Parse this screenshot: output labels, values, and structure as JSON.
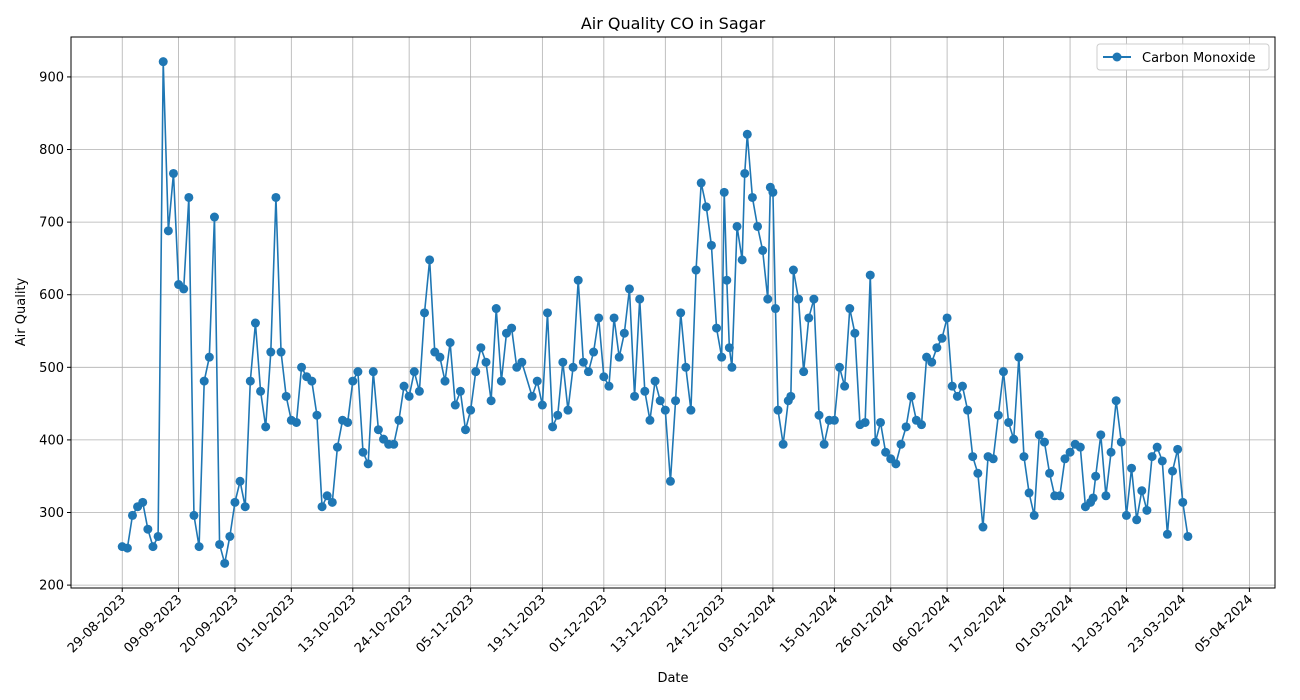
{
  "chart_data": {
    "type": "line",
    "title": "Air Quality CO in Sagar",
    "xlabel": "Date",
    "ylabel": "Air Quality",
    "ylim": [
      196,
      955
    ],
    "xlim": [
      "2023-08-19",
      "2024-04-10"
    ],
    "grid": true,
    "legend_position": "top-right",
    "colors": {
      "series": "#1f77b4",
      "grid": "#b0b0b0",
      "axis": "#000000"
    },
    "y_ticks": [
      200,
      300,
      400,
      500,
      600,
      700,
      800,
      900
    ],
    "x_ticks": [
      {
        "date": "2023-08-29",
        "label": "29-08-2023"
      },
      {
        "date": "2023-09-09",
        "label": "09-09-2023"
      },
      {
        "date": "2023-09-20",
        "label": "20-09-2023"
      },
      {
        "date": "2023-10-01",
        "label": "01-10-2023"
      },
      {
        "date": "2023-10-13",
        "label": "13-10-2023"
      },
      {
        "date": "2023-10-24",
        "label": "24-10-2023"
      },
      {
        "date": "2023-11-05",
        "label": "05-11-2023"
      },
      {
        "date": "2023-11-19",
        "label": "19-11-2023"
      },
      {
        "date": "2023-12-01",
        "label": "01-12-2023"
      },
      {
        "date": "2023-12-13",
        "label": "13-12-2023"
      },
      {
        "date": "2023-12-24",
        "label": "24-12-2023"
      },
      {
        "date": "2024-01-03",
        "label": "03-01-2024"
      },
      {
        "date": "2024-01-15",
        "label": "15-01-2024"
      },
      {
        "date": "2024-01-26",
        "label": "26-01-2024"
      },
      {
        "date": "2024-02-06",
        "label": "06-02-2024"
      },
      {
        "date": "2024-02-17",
        "label": "17-02-2024"
      },
      {
        "date": "2024-03-01",
        "label": "01-03-2024"
      },
      {
        "date": "2024-03-12",
        "label": "12-03-2024"
      },
      {
        "date": "2024-03-23",
        "label": "23-03-2024"
      },
      {
        "date": "2024-04-05",
        "label": "05-04-2024"
      }
    ],
    "series": [
      {
        "name": "Carbon Monoxide",
        "marker": "circle",
        "points": [
          {
            "x": "2023-08-29",
            "y": 253
          },
          {
            "x": "2023-08-30",
            "y": 251
          },
          {
            "x": "2023-08-31",
            "y": 296
          },
          {
            "x": "2023-09-01",
            "y": 308
          },
          {
            "x": "2023-09-02",
            "y": 314
          },
          {
            "x": "2023-09-03",
            "y": 277
          },
          {
            "x": "2023-09-04",
            "y": 253
          },
          {
            "x": "2023-09-05",
            "y": 267
          },
          {
            "x": "2023-09-06",
            "y": 921
          },
          {
            "x": "2023-09-07",
            "y": 688
          },
          {
            "x": "2023-09-08",
            "y": 767
          },
          {
            "x": "2023-09-09",
            "y": 614
          },
          {
            "x": "2023-09-10",
            "y": 608
          },
          {
            "x": "2023-09-11",
            "y": 734
          },
          {
            "x": "2023-09-12",
            "y": 296
          },
          {
            "x": "2023-09-13",
            "y": 253
          },
          {
            "x": "2023-09-14",
            "y": 481
          },
          {
            "x": "2023-09-15",
            "y": 514
          },
          {
            "x": "2023-09-16",
            "y": 707
          },
          {
            "x": "2023-09-17",
            "y": 256
          },
          {
            "x": "2023-09-18",
            "y": 230
          },
          {
            "x": "2023-09-19",
            "y": 267
          },
          {
            "x": "2023-09-20",
            "y": 314
          },
          {
            "x": "2023-09-21",
            "y": 343
          },
          {
            "x": "2023-09-22",
            "y": 308
          },
          {
            "x": "2023-09-23",
            "y": 481
          },
          {
            "x": "2023-09-24",
            "y": 561
          },
          {
            "x": "2023-09-25",
            "y": 467
          },
          {
            "x": "2023-09-26",
            "y": 418
          },
          {
            "x": "2023-09-27",
            "y": 521
          },
          {
            "x": "2023-09-28",
            "y": 734
          },
          {
            "x": "2023-09-29",
            "y": 521
          },
          {
            "x": "2023-09-30",
            "y": 460
          },
          {
            "x": "2023-10-01",
            "y": 427
          },
          {
            "x": "2023-10-02",
            "y": 424
          },
          {
            "x": "2023-10-03",
            "y": 500
          },
          {
            "x": "2023-10-04",
            "y": 487
          },
          {
            "x": "2023-10-05",
            "y": 481
          },
          {
            "x": "2023-10-06",
            "y": 434
          },
          {
            "x": "2023-10-07",
            "y": 308
          },
          {
            "x": "2023-10-08",
            "y": 323
          },
          {
            "x": "2023-10-09",
            "y": 314
          },
          {
            "x": "2023-10-10",
            "y": 390
          },
          {
            "x": "2023-10-11",
            "y": 427
          },
          {
            "x": "2023-10-12",
            "y": 424
          },
          {
            "x": "2023-10-13",
            "y": 481
          },
          {
            "x": "2023-10-14",
            "y": 494
          },
          {
            "x": "2023-10-15",
            "y": 383
          },
          {
            "x": "2023-10-16",
            "y": 367
          },
          {
            "x": "2023-10-17",
            "y": 494
          },
          {
            "x": "2023-10-18",
            "y": 414
          },
          {
            "x": "2023-10-19",
            "y": 401
          },
          {
            "x": "2023-10-20",
            "y": 394
          },
          {
            "x": "2023-10-21",
            "y": 394
          },
          {
            "x": "2023-10-22",
            "y": 427
          },
          {
            "x": "2023-10-23",
            "y": 474
          },
          {
            "x": "2023-10-24",
            "y": 460
          },
          {
            "x": "2023-10-25",
            "y": 494
          },
          {
            "x": "2023-10-26",
            "y": 467
          },
          {
            "x": "2023-10-27",
            "y": 575
          },
          {
            "x": "2023-10-28",
            "y": 648
          },
          {
            "x": "2023-10-29",
            "y": 521
          },
          {
            "x": "2023-10-30",
            "y": 514
          },
          {
            "x": "2023-10-31",
            "y": 481
          },
          {
            "x": "2023-11-01",
            "y": 534
          },
          {
            "x": "2023-11-02",
            "y": 448
          },
          {
            "x": "2023-11-03",
            "y": 467
          },
          {
            "x": "2023-11-04",
            "y": 414
          },
          {
            "x": "2023-11-05",
            "y": 441
          },
          {
            "x": "2023-11-06",
            "y": 494
          },
          {
            "x": "2023-11-07",
            "y": 527
          },
          {
            "x": "2023-11-08",
            "y": 507
          },
          {
            "x": "2023-11-09",
            "y": 454
          },
          {
            "x": "2023-11-10",
            "y": 581
          },
          {
            "x": "2023-11-11",
            "y": 481
          },
          {
            "x": "2023-11-12",
            "y": 547
          },
          {
            "x": "2023-11-13",
            "y": 554
          },
          {
            "x": "2023-11-14",
            "y": 500
          },
          {
            "x": "2023-11-15",
            "y": 507
          },
          {
            "x": "2023-11-17",
            "y": 460
          },
          {
            "x": "2023-11-18",
            "y": 481
          },
          {
            "x": "2023-11-19",
            "y": 448
          },
          {
            "x": "2023-11-20",
            "y": 575
          },
          {
            "x": "2023-11-21",
            "y": 418
          },
          {
            "x": "2023-11-22",
            "y": 434
          },
          {
            "x": "2023-11-23",
            "y": 507
          },
          {
            "x": "2023-11-24",
            "y": 441
          },
          {
            "x": "2023-11-25",
            "y": 500
          },
          {
            "x": "2023-11-26",
            "y": 620
          },
          {
            "x": "2023-11-27",
            "y": 507
          },
          {
            "x": "2023-11-28",
            "y": 494
          },
          {
            "x": "2023-11-29",
            "y": 521
          },
          {
            "x": "2023-11-30",
            "y": 568
          },
          {
            "x": "2023-12-01",
            "y": 487
          },
          {
            "x": "2023-12-02",
            "y": 474
          },
          {
            "x": "2023-12-03",
            "y": 568
          },
          {
            "x": "2023-12-04",
            "y": 514
          },
          {
            "x": "2023-12-05",
            "y": 547
          },
          {
            "x": "2023-12-06",
            "y": 608
          },
          {
            "x": "2023-12-07",
            "y": 460
          },
          {
            "x": "2023-12-08",
            "y": 594
          },
          {
            "x": "2023-12-09",
            "y": 467
          },
          {
            "x": "2023-12-10",
            "y": 427
          },
          {
            "x": "2023-12-11",
            "y": 481
          },
          {
            "x": "2023-12-12",
            "y": 454
          },
          {
            "x": "2023-12-13",
            "y": 441
          },
          {
            "x": "2023-12-14",
            "y": 343
          },
          {
            "x": "2023-12-15",
            "y": 454
          },
          {
            "x": "2023-12-16",
            "y": 575
          },
          {
            "x": "2023-12-17",
            "y": 500
          },
          {
            "x": "2023-12-18",
            "y": 441
          },
          {
            "x": "2023-12-19",
            "y": 634
          },
          {
            "x": "2023-12-20",
            "y": 754
          },
          {
            "x": "2023-12-21",
            "y": 721
          },
          {
            "x": "2023-12-22",
            "y": 668
          },
          {
            "x": "2023-12-23",
            "y": 554
          },
          {
            "x": "2023-12-24",
            "y": 514
          },
          {
            "x": "2023-12-24T12:00",
            "y": 741
          },
          {
            "x": "2023-12-25",
            "y": 620
          },
          {
            "x": "2023-12-25T12:00",
            "y": 527
          },
          {
            "x": "2023-12-26",
            "y": 500
          },
          {
            "x": "2023-12-27",
            "y": 694
          },
          {
            "x": "2023-12-28",
            "y": 648
          },
          {
            "x": "2023-12-28T12:00",
            "y": 767
          },
          {
            "x": "2023-12-29",
            "y": 821
          },
          {
            "x": "2023-12-30",
            "y": 734
          },
          {
            "x": "2023-12-31",
            "y": 694
          },
          {
            "x": "2024-01-01",
            "y": 661
          },
          {
            "x": "2024-01-02",
            "y": 594
          },
          {
            "x": "2024-01-02T12:00",
            "y": 748
          },
          {
            "x": "2024-01-03",
            "y": 741
          },
          {
            "x": "2024-01-03T12:00",
            "y": 581
          },
          {
            "x": "2024-01-04",
            "y": 441
          },
          {
            "x": "2024-01-05",
            "y": 394
          },
          {
            "x": "2024-01-06",
            "y": 454
          },
          {
            "x": "2024-01-06T12:00",
            "y": 460
          },
          {
            "x": "2024-01-07",
            "y": 634
          },
          {
            "x": "2024-01-08",
            "y": 594
          },
          {
            "x": "2024-01-09",
            "y": 494
          },
          {
            "x": "2024-01-10",
            "y": 568
          },
          {
            "x": "2024-01-11",
            "y": 594
          },
          {
            "x": "2024-01-12",
            "y": 434
          },
          {
            "x": "2024-01-13",
            "y": 394
          },
          {
            "x": "2024-01-14",
            "y": 427
          },
          {
            "x": "2024-01-15",
            "y": 427
          },
          {
            "x": "2024-01-16",
            "y": 500
          },
          {
            "x": "2024-01-17",
            "y": 474
          },
          {
            "x": "2024-01-18",
            "y": 581
          },
          {
            "x": "2024-01-19",
            "y": 547
          },
          {
            "x": "2024-01-20",
            "y": 421
          },
          {
            "x": "2024-01-21",
            "y": 424
          },
          {
            "x": "2024-01-22",
            "y": 627
          },
          {
            "x": "2024-01-23",
            "y": 397
          },
          {
            "x": "2024-01-24",
            "y": 424
          },
          {
            "x": "2024-01-25",
            "y": 383
          },
          {
            "x": "2024-01-26",
            "y": 374
          },
          {
            "x": "2024-01-27",
            "y": 367
          },
          {
            "x": "2024-01-28",
            "y": 394
          },
          {
            "x": "2024-01-29",
            "y": 418
          },
          {
            "x": "2024-01-30",
            "y": 460
          },
          {
            "x": "2024-01-31",
            "y": 427
          },
          {
            "x": "2024-02-01",
            "y": 421
          },
          {
            "x": "2024-02-02",
            "y": 514
          },
          {
            "x": "2024-02-03",
            "y": 507
          },
          {
            "x": "2024-02-04",
            "y": 527
          },
          {
            "x": "2024-02-05",
            "y": 540
          },
          {
            "x": "2024-02-06",
            "y": 568
          },
          {
            "x": "2024-02-07",
            "y": 474
          },
          {
            "x": "2024-02-08",
            "y": 460
          },
          {
            "x": "2024-02-09",
            "y": 474
          },
          {
            "x": "2024-02-10",
            "y": 441
          },
          {
            "x": "2024-02-11",
            "y": 377
          },
          {
            "x": "2024-02-12",
            "y": 354
          },
          {
            "x": "2024-02-13",
            "y": 280
          },
          {
            "x": "2024-02-14",
            "y": 377
          },
          {
            "x": "2024-02-15",
            "y": 374
          },
          {
            "x": "2024-02-16",
            "y": 434
          },
          {
            "x": "2024-02-17",
            "y": 494
          },
          {
            "x": "2024-02-18",
            "y": 424
          },
          {
            "x": "2024-02-19",
            "y": 401
          },
          {
            "x": "2024-02-20",
            "y": 514
          },
          {
            "x": "2024-02-21",
            "y": 377
          },
          {
            "x": "2024-02-22",
            "y": 327
          },
          {
            "x": "2024-02-23",
            "y": 296
          },
          {
            "x": "2024-02-24",
            "y": 407
          },
          {
            "x": "2024-02-25",
            "y": 397
          },
          {
            "x": "2024-02-26",
            "y": 354
          },
          {
            "x": "2024-02-27",
            "y": 323
          },
          {
            "x": "2024-02-28",
            "y": 323
          },
          {
            "x": "2024-02-29",
            "y": 374
          },
          {
            "x": "2024-03-01",
            "y": 383
          },
          {
            "x": "2024-03-02",
            "y": 394
          },
          {
            "x": "2024-03-03",
            "y": 390
          },
          {
            "x": "2024-03-04",
            "y": 308
          },
          {
            "x": "2024-03-05",
            "y": 314
          },
          {
            "x": "2024-03-05T12:00",
            "y": 320
          },
          {
            "x": "2024-03-06",
            "y": 350
          },
          {
            "x": "2024-03-07",
            "y": 407
          },
          {
            "x": "2024-03-08",
            "y": 323
          },
          {
            "x": "2024-03-09",
            "y": 383
          },
          {
            "x": "2024-03-10",
            "y": 454
          },
          {
            "x": "2024-03-11",
            "y": 397
          },
          {
            "x": "2024-03-12",
            "y": 296
          },
          {
            "x": "2024-03-13",
            "y": 361
          },
          {
            "x": "2024-03-14",
            "y": 290
          },
          {
            "x": "2024-03-15",
            "y": 330
          },
          {
            "x": "2024-03-16",
            "y": 303
          },
          {
            "x": "2024-03-17",
            "y": 377
          },
          {
            "x": "2024-03-18",
            "y": 390
          },
          {
            "x": "2024-03-19",
            "y": 371
          },
          {
            "x": "2024-03-20",
            "y": 270
          },
          {
            "x": "2024-03-21",
            "y": 357
          },
          {
            "x": "2024-03-22",
            "y": 387
          },
          {
            "x": "2024-03-23",
            "y": 314
          },
          {
            "x": "2024-03-24",
            "y": 267
          }
        ]
      }
    ]
  }
}
